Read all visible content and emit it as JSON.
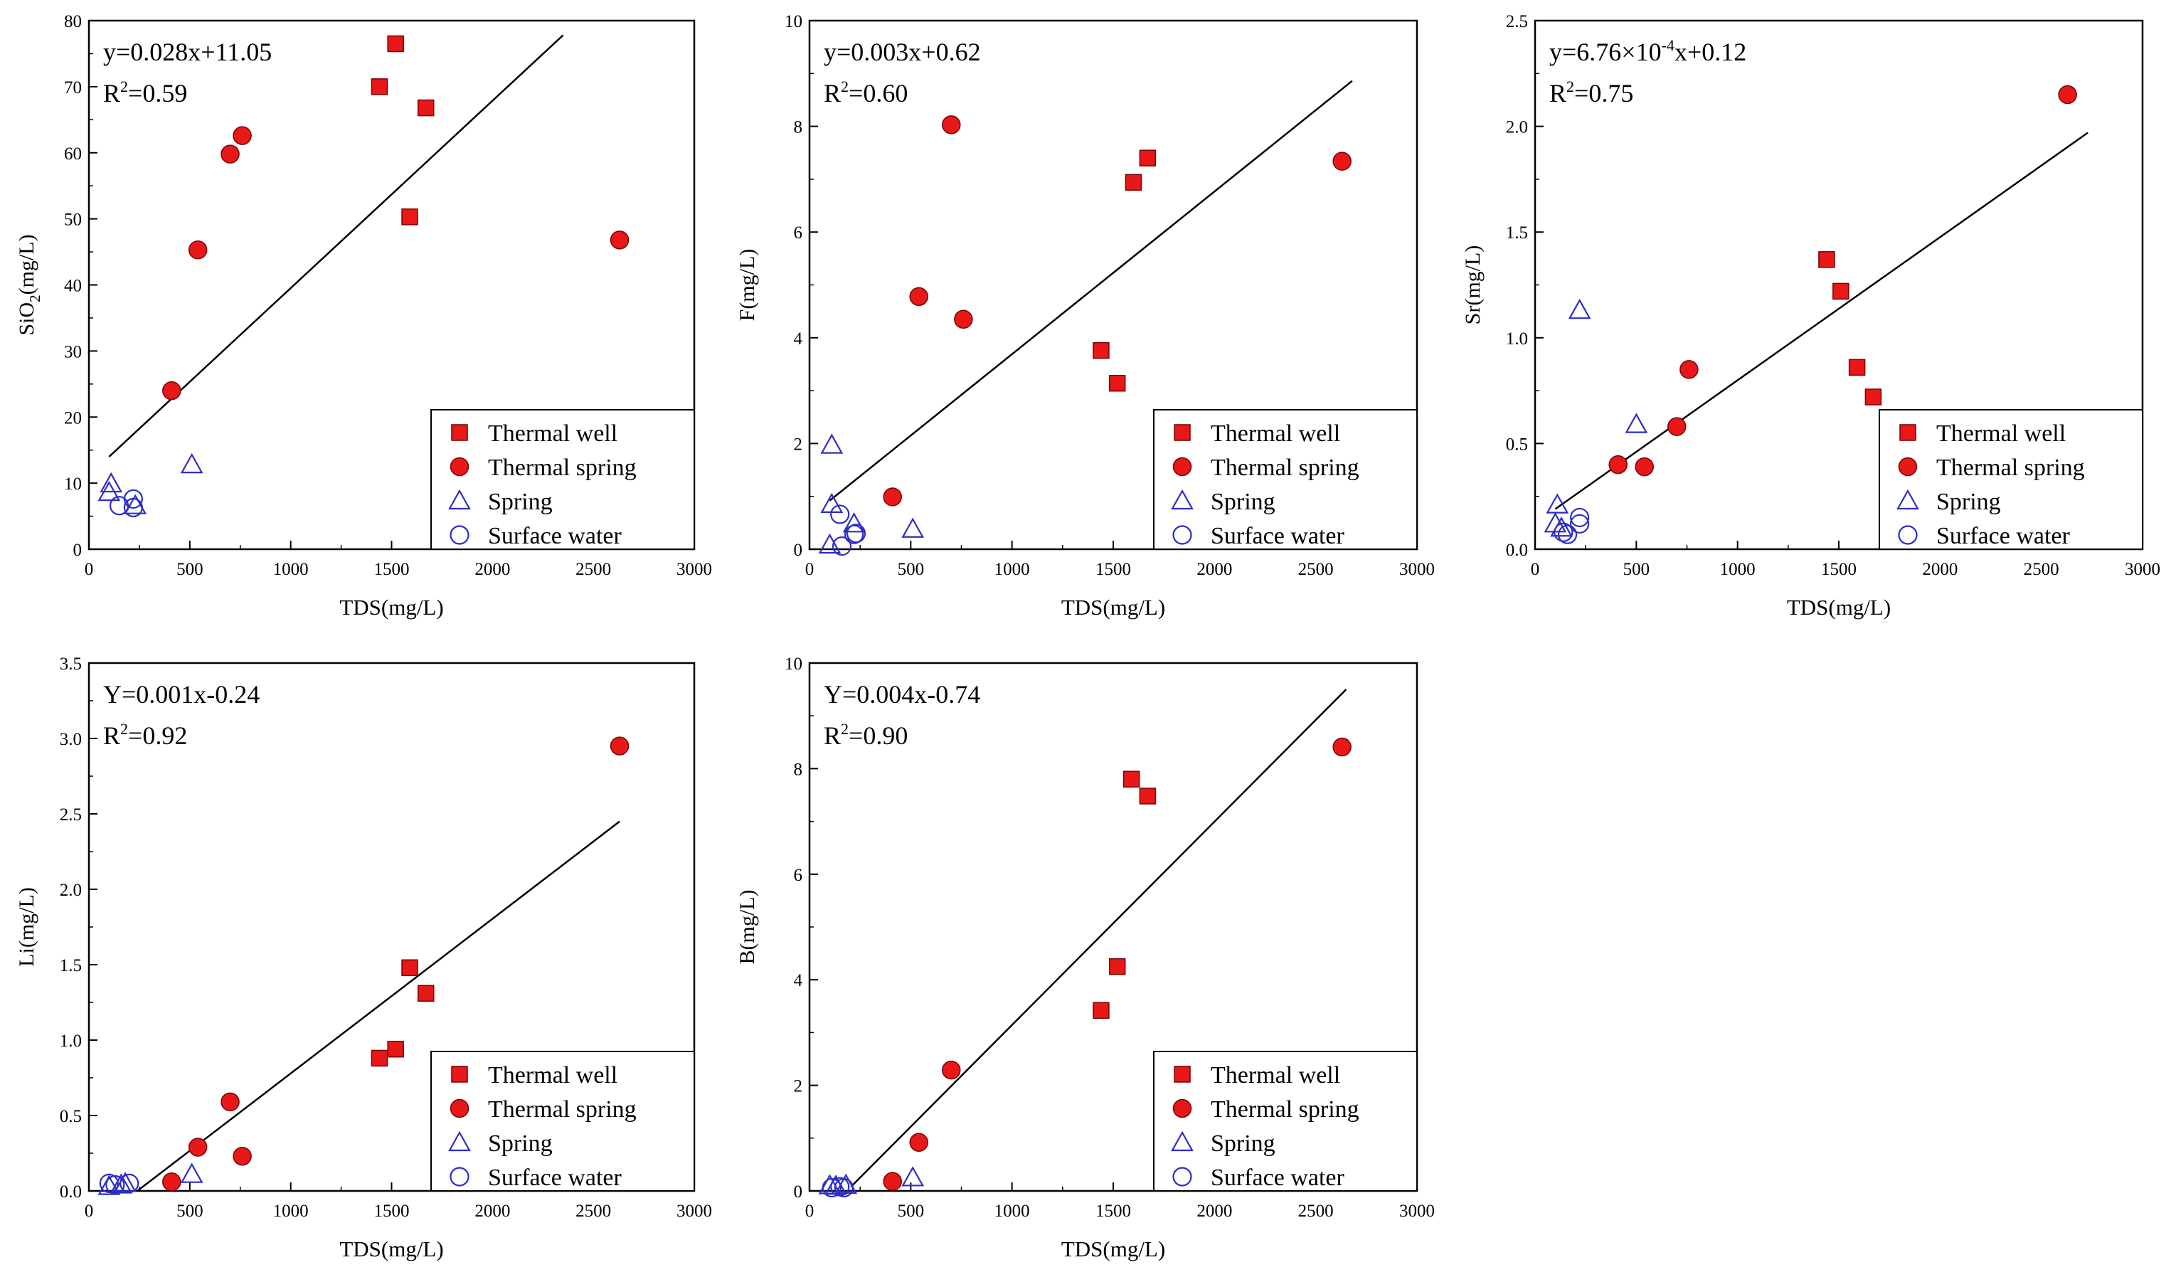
{
  "legend_items": [
    {
      "label": "Thermal well",
      "key": "thermal_well"
    },
    {
      "label": "Thermal spring",
      "key": "thermal_spring"
    },
    {
      "label": "Spring",
      "key": "spring"
    },
    {
      "label": "Surface water",
      "key": "surface_water"
    }
  ],
  "colors": {
    "thermal": "#e81818",
    "natural": "#2d2dc8",
    "line": "#000000"
  },
  "chart_data": [
    {
      "id": "sio2",
      "type": "scatter",
      "xlabel": "TDS(mg/L)",
      "ylabel_parts": [
        "SiO",
        "2",
        "(mg/L)"
      ],
      "xlim": [
        0,
        3000
      ],
      "ylim": [
        0,
        80
      ],
      "xticks": [
        0,
        500,
        1000,
        1500,
        2000,
        2500,
        3000
      ],
      "yticks": [
        0,
        10,
        20,
        30,
        40,
        50,
        60,
        70,
        80
      ],
      "ytick_labels": [
        "0",
        "10",
        "20",
        "30",
        "40",
        "50",
        "60",
        "70",
        "80"
      ],
      "equation_parts": [
        "y=0.028x+11.05"
      ],
      "r2_label": "=0.59",
      "fit_line": {
        "x": [
          100,
          2350
        ],
        "y": [
          14,
          77.8
        ]
      },
      "series": {
        "thermal_well": [
          [
            1440,
            70
          ],
          [
            1520,
            76.5
          ],
          [
            1590,
            50.3
          ],
          [
            1670,
            66.8
          ]
        ],
        "thermal_spring": [
          [
            410,
            24
          ],
          [
            540,
            45.3
          ],
          [
            700,
            59.8
          ],
          [
            760,
            62.6
          ],
          [
            2630,
            46.8
          ]
        ],
        "spring": [
          [
            100,
            8.6
          ],
          [
            110,
            9.9
          ],
          [
            230,
            6.6
          ],
          [
            510,
            12.8
          ]
        ],
        "surface_water": [
          [
            150,
            6.6
          ],
          [
            220,
            7.6
          ],
          [
            220,
            6.3
          ]
        ]
      }
    },
    {
      "id": "f",
      "type": "scatter",
      "xlabel": "TDS(mg/L)",
      "ylabel_parts": [
        "F(mg/L)"
      ],
      "xlim": [
        0,
        3000
      ],
      "ylim": [
        0,
        10
      ],
      "xticks": [
        0,
        500,
        1000,
        1500,
        2000,
        2500,
        3000
      ],
      "yticks": [
        0,
        2,
        4,
        6,
        8,
        10
      ],
      "ytick_labels": [
        "0",
        "2",
        "4",
        "6",
        "8",
        "10"
      ],
      "equation_parts": [
        "y=0.003x+0.62"
      ],
      "r2_label": "=0.60",
      "fit_line": {
        "x": [
          100,
          2680
        ],
        "y": [
          0.92,
          8.86
        ]
      },
      "series": {
        "thermal_well": [
          [
            1440,
            3.76
          ],
          [
            1520,
            3.14
          ],
          [
            1600,
            6.94
          ],
          [
            1670,
            7.4
          ]
        ],
        "thermal_spring": [
          [
            410,
            0.99
          ],
          [
            540,
            4.78
          ],
          [
            700,
            8.03
          ],
          [
            760,
            4.35
          ],
          [
            2630,
            7.34
          ]
        ],
        "spring": [
          [
            100,
            0.08
          ],
          [
            110,
            1.97
          ],
          [
            110,
            0.85
          ],
          [
            220,
            0.48
          ],
          [
            510,
            0.38
          ]
        ],
        "surface_water": [
          [
            150,
            0.66
          ],
          [
            160,
            0.06
          ],
          [
            220,
            0.28
          ],
          [
            230,
            0.3
          ]
        ]
      }
    },
    {
      "id": "sr",
      "type": "scatter",
      "xlabel": "TDS(mg/L)",
      "ylabel_parts": [
        "Sr(mg/L)"
      ],
      "xlim": [
        0,
        3000
      ],
      "ylim": [
        0,
        2.5
      ],
      "xticks": [
        0,
        500,
        1000,
        1500,
        2000,
        2500,
        3000
      ],
      "yticks": [
        0,
        0.5,
        1,
        1.5,
        2,
        2.5
      ],
      "ytick_labels": [
        "0.0",
        "0.5",
        "1.0",
        "1.5",
        "2.0",
        "2.5"
      ],
      "equation_parts": [
        "y=6.76×10",
        "-4",
        "x+0.12"
      ],
      "r2_label": "=0.75",
      "fit_line": {
        "x": [
          100,
          2730
        ],
        "y": [
          0.19,
          1.97
        ]
      },
      "series": {
        "thermal_well": [
          [
            1440,
            1.37
          ],
          [
            1510,
            1.22
          ],
          [
            1590,
            0.86
          ],
          [
            1670,
            0.72
          ]
        ],
        "thermal_spring": [
          [
            410,
            0.4
          ],
          [
            540,
            0.39
          ],
          [
            700,
            0.58
          ],
          [
            760,
            0.85
          ],
          [
            2630,
            2.15
          ]
        ],
        "spring": [
          [
            100,
            0.12
          ],
          [
            110,
            0.21
          ],
          [
            130,
            0.1
          ],
          [
            220,
            1.13
          ],
          [
            500,
            0.59
          ]
        ],
        "surface_water": [
          [
            140,
            0.08
          ],
          [
            160,
            0.07
          ],
          [
            220,
            0.12
          ],
          [
            220,
            0.15
          ]
        ]
      }
    },
    {
      "id": "li",
      "type": "scatter",
      "xlabel": "TDS(mg/L)",
      "ylabel_parts": [
        "Li(mg/L)"
      ],
      "xlim": [
        0,
        3000
      ],
      "ylim": [
        0,
        3.5
      ],
      "xticks": [
        0,
        500,
        1000,
        1500,
        2000,
        2500,
        3000
      ],
      "yticks": [
        0,
        0.5,
        1,
        1.5,
        2,
        2.5,
        3,
        3.5
      ],
      "ytick_labels": [
        "0.0",
        "0.5",
        "1.0",
        "1.5",
        "2.0",
        "2.5",
        "3.0",
        "3.5"
      ],
      "equation_parts": [
        "Y=0.001x-0.24"
      ],
      "r2_label": "=0.92",
      "fit_line": {
        "x": [
          240,
          2630
        ],
        "y": [
          0,
          2.45
        ]
      },
      "series": {
        "thermal_well": [
          [
            1440,
            0.88
          ],
          [
            1520,
            0.94
          ],
          [
            1590,
            1.48
          ],
          [
            1670,
            1.31
          ]
        ],
        "thermal_spring": [
          [
            410,
            0.06
          ],
          [
            540,
            0.29
          ],
          [
            700,
            0.59
          ],
          [
            760,
            0.23
          ],
          [
            2630,
            2.95
          ]
        ],
        "spring": [
          [
            100,
            0.03
          ],
          [
            160,
            0.04
          ],
          [
            180,
            0.05
          ],
          [
            510,
            0.11
          ]
        ],
        "surface_water": [
          [
            100,
            0.05
          ],
          [
            130,
            0.04
          ],
          [
            200,
            0.05
          ]
        ]
      }
    },
    {
      "id": "b",
      "type": "scatter",
      "xlabel": "TDS(mg/L)",
      "ylabel_parts": [
        "B(mg/L)"
      ],
      "xlim": [
        0,
        3000
      ],
      "ylim": [
        0,
        10
      ],
      "xticks": [
        0,
        500,
        1000,
        1500,
        2000,
        2500,
        3000
      ],
      "yticks": [
        0,
        2,
        4,
        6,
        8,
        10
      ],
      "ytick_labels": [
        "0",
        "2",
        "4",
        "6",
        "8",
        "10"
      ],
      "equation_parts": [
        "Y=0.004x-0.74"
      ],
      "r2_label": "=0.90",
      "fit_line": {
        "x": [
          205,
          2650
        ],
        "y": [
          0.08,
          9.5
        ]
      },
      "series": {
        "thermal_well": [
          [
            1440,
            3.42
          ],
          [
            1520,
            4.25
          ],
          [
            1590,
            7.8
          ],
          [
            1670,
            7.48
          ]
        ],
        "thermal_spring": [
          [
            410,
            0.18
          ],
          [
            540,
            0.92
          ],
          [
            700,
            2.29
          ],
          [
            2630,
            8.41
          ]
        ],
        "spring": [
          [
            100,
            0.1
          ],
          [
            130,
            0.09
          ],
          [
            180,
            0.11
          ],
          [
            510,
            0.25
          ]
        ],
        "surface_water": [
          [
            110,
            0.06
          ],
          [
            150,
            0.08
          ],
          [
            170,
            0.06
          ]
        ]
      }
    }
  ]
}
